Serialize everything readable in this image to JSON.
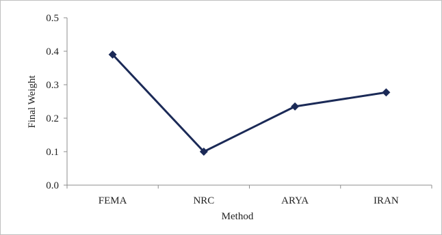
{
  "chart_data": {
    "type": "line",
    "xlabel": "Method",
    "ylabel": "Final Weight",
    "categories": [
      "FEMA",
      "NRC",
      "ARYA",
      "IRAN"
    ],
    "series": [
      {
        "values": [
          0.39,
          0.1,
          0.235,
          0.277
        ]
      }
    ],
    "ylim": [
      0.0,
      0.5
    ],
    "yticks": [
      "0.0",
      "0.1",
      "0.2",
      "0.3",
      "0.4",
      "0.5"
    ],
    "grid": false,
    "legend": "none",
    "marker": "diamond",
    "line_color": "#1b2a57"
  }
}
